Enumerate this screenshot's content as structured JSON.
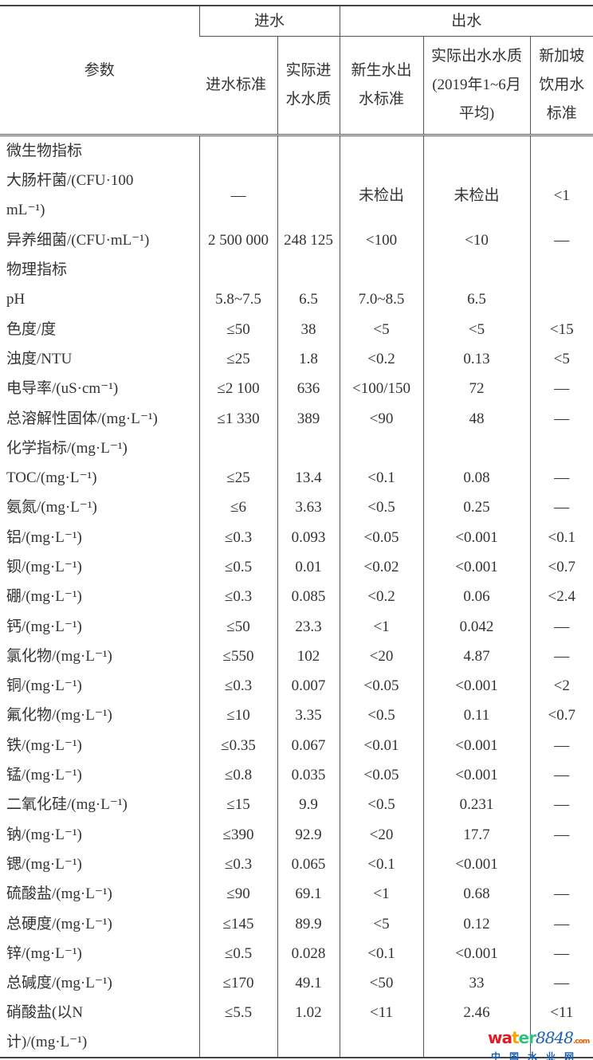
{
  "header": {
    "param": "参数",
    "group_in": "进水",
    "group_out": "出水",
    "columns": [
      "进水标准",
      "实际进水水质",
      "新生水出水标准",
      "实际出水水质(2019年1~6月平均)",
      "新加坡饮用水标准"
    ]
  },
  "rows": [
    {
      "label": "微生物指标",
      "section": true,
      "cells": [
        "",
        "",
        "",
        "",
        ""
      ]
    },
    {
      "label": "大肠杆菌/(CFU·100 mL⁻¹)",
      "double": true,
      "cells": [
        "—",
        "",
        "未检出",
        "未检出",
        "<1"
      ]
    },
    {
      "label": "异养细菌/(CFU·mL⁻¹)",
      "cells": [
        "2 500 000",
        "248 125",
        "<100",
        "<10",
        "—"
      ]
    },
    {
      "label": "物理指标",
      "section": true,
      "cells": [
        "",
        "",
        "",
        "",
        ""
      ]
    },
    {
      "label": "pH",
      "cells": [
        "5.8~7.5",
        "6.5",
        "7.0~8.5",
        "6.5",
        ""
      ]
    },
    {
      "label": "色度/度",
      "cells": [
        "≤50",
        "38",
        "<5",
        "<5",
        "<15"
      ]
    },
    {
      "label": "浊度/NTU",
      "cells": [
        "≤25",
        "1.8",
        "<0.2",
        "0.13",
        "<5"
      ]
    },
    {
      "label": "电导率/(uS·cm⁻¹)",
      "cells": [
        "≤2 100",
        "636",
        "<100/150",
        "72",
        "—"
      ]
    },
    {
      "label": "总溶解性固体/(mg·L⁻¹)",
      "cells": [
        "≤1 330",
        "389",
        "<90",
        "48",
        "—"
      ]
    },
    {
      "label": "化学指标/(mg·L⁻¹)",
      "section": true,
      "cells": [
        "",
        "",
        "",
        "",
        ""
      ]
    },
    {
      "label": "TOC/(mg·L⁻¹)",
      "cells": [
        "≤25",
        "13.4",
        "<0.1",
        "0.08",
        "—"
      ]
    },
    {
      "label": "氨氮/(mg·L⁻¹)",
      "cells": [
        "≤6",
        "3.63",
        "<0.5",
        "0.25",
        "—"
      ]
    },
    {
      "label": "铝/(mg·L⁻¹)",
      "cells": [
        "≤0.3",
        "0.093",
        "<0.05",
        "<0.001",
        "<0.1"
      ]
    },
    {
      "label": "钡/(mg·L⁻¹)",
      "cells": [
        "≤0.5",
        "0.01",
        "<0.02",
        "<0.001",
        "<0.7"
      ]
    },
    {
      "label": "硼/(mg·L⁻¹)",
      "cells": [
        "≤0.3",
        "0.085",
        "<0.2",
        "0.06",
        "<2.4"
      ]
    },
    {
      "label": "钙/(mg·L⁻¹)",
      "cells": [
        "≤50",
        "23.3",
        "<1",
        "0.042",
        "—"
      ]
    },
    {
      "label": "氯化物/(mg·L⁻¹)",
      "cells": [
        "≤550",
        "102",
        "<20",
        "4.87",
        "—"
      ]
    },
    {
      "label": "铜/(mg·L⁻¹)",
      "cells": [
        "≤0.3",
        "0.007",
        "<0.05",
        "<0.001",
        "<2"
      ]
    },
    {
      "label": "氟化物/(mg·L⁻¹)",
      "cells": [
        "≤10",
        "3.35",
        "<0.5",
        "0.11",
        "<0.7"
      ]
    },
    {
      "label": "铁/(mg·L⁻¹)",
      "cells": [
        "≤0.35",
        "0.067",
        "<0.01",
        "<0.001",
        "—"
      ]
    },
    {
      "label": "锰/(mg·L⁻¹)",
      "cells": [
        "≤0.8",
        "0.035",
        "<0.05",
        "<0.001",
        "—"
      ]
    },
    {
      "label": "二氧化硅/(mg·L⁻¹)",
      "cells": [
        "≤15",
        "9.9",
        "<0.5",
        "0.231",
        "—"
      ]
    },
    {
      "label": "钠/(mg·L⁻¹)",
      "cells": [
        "≤390",
        "92.9",
        "<20",
        "17.7",
        "—"
      ]
    },
    {
      "label": "锶/(mg·L⁻¹)",
      "cells": [
        "≤0.3",
        "0.065",
        "<0.1",
        "<0.001",
        ""
      ]
    },
    {
      "label": "硫酸盐/(mg·L⁻¹)",
      "cells": [
        "≤90",
        "69.1",
        "<1",
        "0.68",
        "—"
      ]
    },
    {
      "label": "总硬度/(mg·L⁻¹)",
      "cells": [
        "≤145",
        "89.9",
        "<5",
        "0.12",
        "—"
      ]
    },
    {
      "label": "锌/(mg·L⁻¹)",
      "cells": [
        "≤0.5",
        "0.028",
        "<0.1",
        "<0.001",
        "—"
      ]
    },
    {
      "label": "总碱度/(mg·L⁻¹)",
      "cells": [
        "≤170",
        "49.1",
        "<50",
        "33",
        "—"
      ]
    },
    {
      "label": "硝酸盐(以N计)/(mg·L⁻¹)",
      "double": true,
      "cells": [
        "≤5.5",
        "1.02",
        "<11",
        "2.46",
        "<11"
      ]
    }
  ],
  "watermark": {
    "brand": "water8848",
    "suffix": ".com",
    "cn": "中国水业网"
  }
}
